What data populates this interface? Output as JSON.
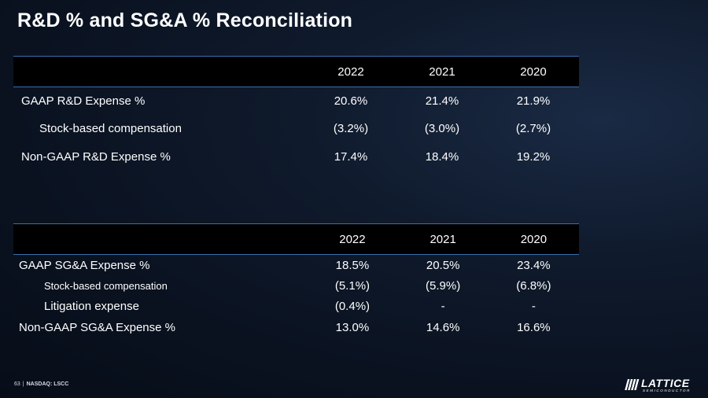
{
  "slide": {
    "title": "R&D % and SG&A % Reconciliation"
  },
  "table_rd": {
    "header": [
      "",
      "2022",
      "2021",
      "2020"
    ],
    "rows": [
      {
        "label": "GAAP R&D Expense %",
        "values": [
          "20.6%",
          "21.4%",
          "21.9%"
        ]
      },
      {
        "label": "Stock-based compensation",
        "values": [
          "(3.2%)",
          "(3.0%)",
          "(2.7%)"
        ]
      },
      {
        "label": "Non-GAAP R&D Expense %",
        "values": [
          "17.4%",
          "18.4%",
          "19.2%"
        ]
      }
    ]
  },
  "table_sga": {
    "header": [
      "",
      "2022",
      "2021",
      "2020"
    ],
    "rows": [
      {
        "label": "GAAP SG&A Expense %",
        "values": [
          "18.5%",
          "20.5%",
          "23.4%"
        ]
      },
      {
        "label": "Stock-based compensation",
        "values": [
          "(5.1%)",
          "(5.9%)",
          "(6.8%)"
        ]
      },
      {
        "label": "Litigation expense",
        "values": [
          "(0.4%)",
          "-",
          "-"
        ]
      },
      {
        "label": "Non-GAAP SG&A Expense %",
        "values": [
          "13.0%",
          "14.6%",
          "16.6%"
        ]
      }
    ]
  },
  "footer": {
    "page_number": "63",
    "separator": "|",
    "ticker": "NASDAQ: LSCC"
  },
  "logo": {
    "icon": "lattice-bars-icon",
    "wordmark": "LATTICE",
    "subtitle": "SEMICONDUCTOR"
  }
}
